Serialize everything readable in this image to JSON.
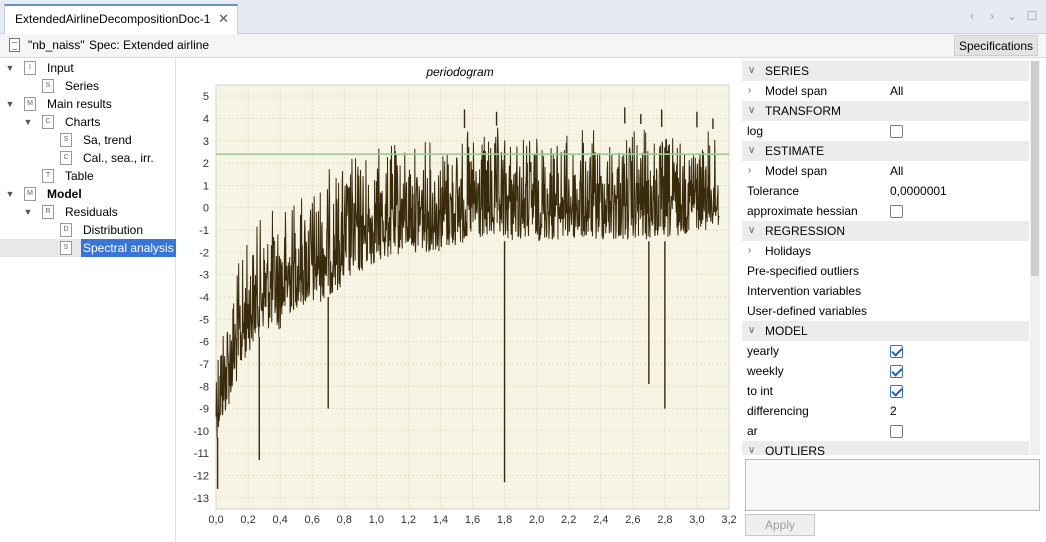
{
  "tab": {
    "title": "ExtendedAirlineDecompositionDoc-1",
    "close": "✕"
  },
  "window_controls": [
    "‹",
    "›",
    "⌄",
    "☐"
  ],
  "infobar": {
    "series_name": "\"nb_naiss\"",
    "spec_text": "Spec: Extended airline",
    "specifications_button": "Specifications"
  },
  "tree": [
    {
      "label": "Input",
      "expanded": true,
      "icon": "I",
      "depth": 0
    },
    {
      "label": "Series",
      "icon": "S",
      "depth": 1
    },
    {
      "label": "Main results",
      "expanded": true,
      "icon": "M",
      "depth": 0
    },
    {
      "label": "Charts",
      "expanded": true,
      "icon": "C",
      "depth": 1
    },
    {
      "label": "Sa, trend",
      "icon": "S",
      "depth": 2
    },
    {
      "label": "Cal., sea., irr.",
      "icon": "C",
      "depth": 2
    },
    {
      "label": "Table",
      "icon": "T",
      "depth": 1
    },
    {
      "label": "Model",
      "expanded": true,
      "icon": "M",
      "depth": 0,
      "bold": true
    },
    {
      "label": "Residuals",
      "expanded": true,
      "icon": "R",
      "depth": 1
    },
    {
      "label": "Distribution",
      "icon": "D",
      "depth": 2
    },
    {
      "label": "Spectral analysis",
      "icon": "S",
      "depth": 2,
      "selected": true
    }
  ],
  "chart_data": {
    "type": "line",
    "title": "periodogram",
    "xlabel": "",
    "ylabel": "",
    "xlim": [
      0.0,
      3.2
    ],
    "ylim": [
      -13.5,
      5.5
    ],
    "x_ticks": [
      "0,0",
      "0,2",
      "0,4",
      "0,6",
      "0,8",
      "1,0",
      "1,2",
      "1,4",
      "1,6",
      "1,8",
      "2,0",
      "2,2",
      "2,4",
      "2,6",
      "2,8",
      "3,0",
      "3,2"
    ],
    "y_ticks": [
      "5",
      "4",
      "3",
      "2",
      "1",
      "0",
      "-1",
      "-2",
      "-3",
      "-4",
      "-5",
      "-6",
      "-7",
      "-8",
      "-9",
      "-10",
      "-11",
      "-12",
      "-13"
    ],
    "reference_line": {
      "y": 2.4,
      "color": "#9ccc8e"
    },
    "series": [
      {
        "color": "#3a2a0c",
        "envelope_x": [
          0.0,
          0.1,
          0.2,
          0.3,
          0.4,
          0.5,
          0.6,
          0.7,
          0.8,
          0.9,
          1.0,
          1.2,
          1.4,
          1.6,
          1.8,
          2.0,
          2.2,
          2.4,
          2.6,
          2.8,
          3.0,
          3.14
        ],
        "envelope_low": [
          -10.5,
          -8.5,
          -6.5,
          -5.5,
          -5.5,
          -4.5,
          -4.5,
          -4.0,
          -3.5,
          -3.0,
          -2.5,
          -2.0,
          -2.0,
          -1.5,
          -1.5,
          -1.5,
          -1.5,
          -1.5,
          -1.5,
          -1.5,
          -1.0,
          -1.0
        ],
        "envelope_high": [
          -5.0,
          -3.0,
          -1.0,
          0.0,
          0.5,
          1.0,
          1.5,
          2.0,
          2.5,
          3.0,
          3.0,
          3.2,
          3.5,
          3.6,
          3.7,
          3.6,
          3.6,
          3.7,
          3.8,
          3.6,
          3.6,
          3.5
        ],
        "spikes_down": [
          [
            0.01,
            -12.6
          ],
          [
            0.27,
            -11.3
          ],
          [
            0.7,
            -9.0
          ],
          [
            1.8,
            -12.3
          ],
          [
            2.7,
            -7.9
          ],
          [
            2.8,
            -9.0
          ]
        ],
        "spikes_up": [
          [
            1.55,
            4.4
          ],
          [
            1.75,
            4.3
          ],
          [
            2.55,
            4.5
          ],
          [
            2.65,
            4.2
          ],
          [
            2.78,
            4.4
          ],
          [
            3.0,
            4.3
          ],
          [
            3.1,
            4.0
          ]
        ]
      }
    ],
    "grid": true
  },
  "properties": [
    {
      "kind": "section",
      "label": "SERIES"
    },
    {
      "kind": "sub",
      "label": "Model span",
      "value": "All"
    },
    {
      "kind": "section",
      "label": "TRANSFORM"
    },
    {
      "kind": "check",
      "label": "log",
      "checked": false
    },
    {
      "kind": "section",
      "label": "ESTIMATE"
    },
    {
      "kind": "sub",
      "label": "Model span",
      "value": "All"
    },
    {
      "kind": "text",
      "label": "Tolerance",
      "value": "0,0000001"
    },
    {
      "kind": "check",
      "label": "approximate hessian",
      "checked": false
    },
    {
      "kind": "section",
      "label": "REGRESSION"
    },
    {
      "kind": "sub",
      "label": "Holidays",
      "value": ""
    },
    {
      "kind": "text",
      "label": "Pre-specified outliers",
      "value": ""
    },
    {
      "kind": "text",
      "label": "Intervention variables",
      "value": ""
    },
    {
      "kind": "text",
      "label": "User-defined variables",
      "value": ""
    },
    {
      "kind": "section",
      "label": "MODEL"
    },
    {
      "kind": "check",
      "label": "yearly",
      "checked": true
    },
    {
      "kind": "check",
      "label": "weekly",
      "checked": true
    },
    {
      "kind": "check",
      "label": "to int",
      "checked": true
    },
    {
      "kind": "text",
      "label": "differencing",
      "value": "2"
    },
    {
      "kind": "check",
      "label": "ar",
      "checked": false
    },
    {
      "kind": "section",
      "label": "OUTLIERS"
    }
  ],
  "apply_button": "Apply"
}
